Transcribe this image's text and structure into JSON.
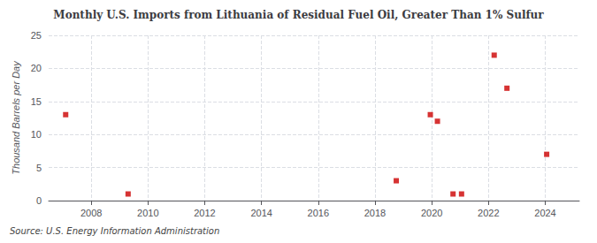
{
  "chart_data": {
    "type": "scatter",
    "title": "Monthly U.S. Imports from Lithuania of Residual Fuel Oil, Greater Than 1% Sulfur",
    "ylabel": "Thousand Barrels per Day",
    "source": "Source: U.S. Energy Information Administration",
    "x": [
      2007.1,
      2009.3,
      2018.75,
      2019.95,
      2020.2,
      2020.75,
      2021.05,
      2022.2,
      2022.65,
      2024.05
    ],
    "values": [
      13.0,
      1.0,
      3.0,
      13.0,
      12.0,
      1.0,
      1.0,
      22.0,
      17.0,
      7.0
    ],
    "color": "#cc0000",
    "marker": "square",
    "xlim": [
      2006.5,
      2025.2
    ],
    "ylim": [
      0,
      25
    ],
    "xticks": [
      2008,
      2010,
      2012,
      2014,
      2016,
      2018,
      2020,
      2022,
      2024
    ],
    "yticks": [
      0,
      5,
      10,
      15,
      20,
      25
    ],
    "grid": true
  }
}
